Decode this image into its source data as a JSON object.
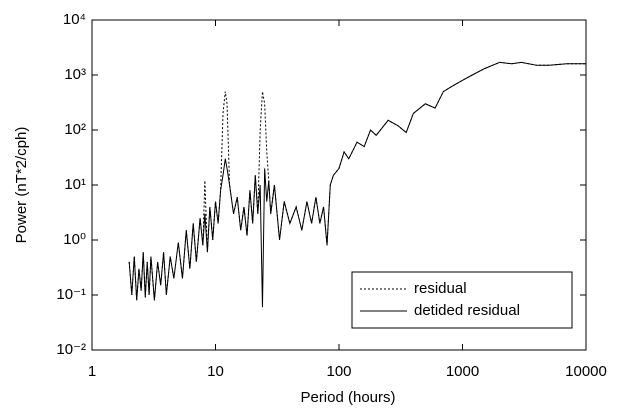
{
  "chart_data": {
    "type": "line",
    "xlabel": "Period (hours)",
    "ylabel": "Power (nT*2/cph)",
    "xscale": "log",
    "yscale": "log",
    "xlim": [
      1,
      10000
    ],
    "ylim": [
      0.01,
      10000
    ],
    "xticks": [
      1,
      10,
      100,
      1000,
      10000
    ],
    "yticks": [
      {
        "value": 0.01,
        "label": "10⁻²"
      },
      {
        "value": 0.1,
        "label": "10⁻¹"
      },
      {
        "value": 1,
        "label": "10⁰"
      },
      {
        "value": 10,
        "label": "10¹"
      },
      {
        "value": 100,
        "label": "10²"
      },
      {
        "value": 1000,
        "label": "10³"
      },
      {
        "value": 10000,
        "label": "10⁴"
      }
    ],
    "legend": "lower right",
    "x": [
      2,
      2.1,
      2.2,
      2.3,
      2.4,
      2.5,
      2.6,
      2.7,
      2.8,
      2.9,
      3,
      3.2,
      3.4,
      3.6,
      3.8,
      4,
      4.3,
      4.6,
      5,
      5.4,
      5.8,
      6.2,
      6.6,
      7,
      7.5,
      7.9,
      8.2,
      8.6,
      9,
      9.5,
      10,
      10.5,
      11,
      11.5,
      12,
      12.4,
      13,
      14,
      15,
      16,
      17,
      18,
      19,
      20,
      21,
      22,
      23,
      24,
      25,
      26,
      27,
      28,
      30,
      33,
      36,
      40,
      45,
      50,
      55,
      60,
      65,
      70,
      75,
      80,
      85,
      90,
      100,
      110,
      120,
      140,
      160,
      180,
      200,
      250,
      300,
      350,
      400,
      500,
      600,
      700,
      800,
      1000,
      1200,
      1500,
      2000,
      2500,
      3000,
      4000,
      5000,
      7000,
      10000
    ],
    "series": [
      {
        "name": "residual",
        "color": "#000000",
        "dash": "dotted",
        "values": [
          0.4,
          0.1,
          0.5,
          0.08,
          0.3,
          0.12,
          0.6,
          0.09,
          0.4,
          0.1,
          0.5,
          0.08,
          0.4,
          0.15,
          0.6,
          0.1,
          0.5,
          0.2,
          0.9,
          0.2,
          1.5,
          0.3,
          2,
          0.4,
          2.5,
          0.8,
          12,
          0.6,
          4,
          1,
          5,
          2,
          8,
          200,
          500,
          300,
          10,
          3,
          6,
          1.5,
          4,
          1.2,
          8,
          2,
          15,
          3,
          100,
          500,
          300,
          40,
          12,
          3,
          10,
          1,
          5,
          2,
          4,
          1.5,
          5,
          2,
          6,
          2,
          4,
          0.8,
          10,
          15,
          20,
          40,
          30,
          60,
          50,
          100,
          80,
          150,
          120,
          90,
          200,
          300,
          250,
          500,
          600,
          800,
          1000,
          1300,
          1700,
          1600,
          1700,
          1500,
          1500,
          1600,
          1600
        ]
      },
      {
        "name": "detided residual",
        "color": "#000000",
        "dash": "solid",
        "values": [
          0.4,
          0.1,
          0.5,
          0.08,
          0.3,
          0.12,
          0.6,
          0.09,
          0.4,
          0.1,
          0.5,
          0.08,
          0.4,
          0.15,
          0.6,
          0.1,
          0.5,
          0.2,
          0.9,
          0.2,
          1.5,
          0.3,
          2,
          0.4,
          2.5,
          0.8,
          3,
          0.6,
          4,
          1,
          5,
          2,
          8,
          15,
          30,
          20,
          10,
          3,
          6,
          1.5,
          4,
          1.2,
          8,
          2,
          15,
          3,
          10,
          0.06,
          20,
          5,
          12,
          3,
          10,
          1,
          5,
          2,
          4,
          1.5,
          5,
          2,
          6,
          2,
          4,
          0.8,
          10,
          15,
          20,
          40,
          30,
          60,
          50,
          100,
          80,
          150,
          120,
          90,
          200,
          300,
          250,
          500,
          600,
          800,
          1000,
          1300,
          1700,
          1600,
          1700,
          1500,
          1500,
          1600,
          1600
        ]
      }
    ]
  }
}
